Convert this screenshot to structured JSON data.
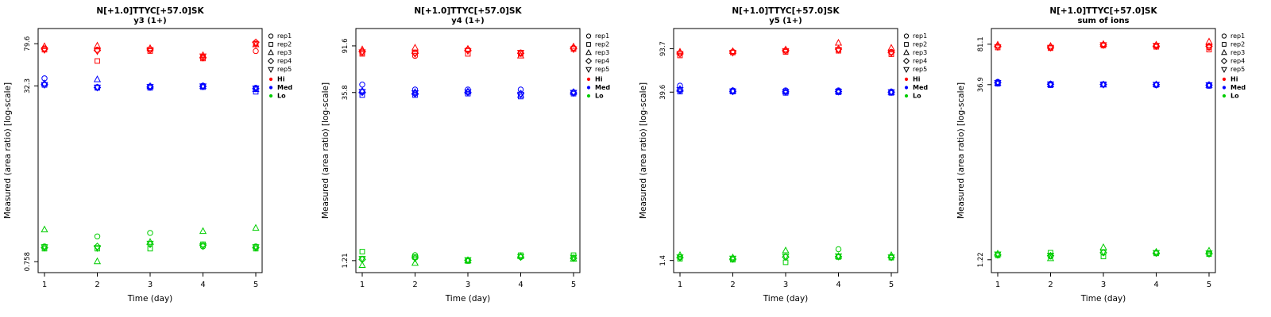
{
  "page": {
    "background": "#ffffff",
    "ylabel": "Measured (area ratio) [log-scale]",
    "xlabel": "Time (day)"
  },
  "legend": {
    "reps": [
      {
        "label": "rep1",
        "marker": "circle"
      },
      {
        "label": "rep2",
        "marker": "square"
      },
      {
        "label": "rep3",
        "marker": "triangle-up"
      },
      {
        "label": "rep4",
        "marker": "diamond"
      },
      {
        "label": "rep5",
        "marker": "triangle-down"
      }
    ],
    "levels": [
      {
        "label": "Hi",
        "color": "#FF0000"
      },
      {
        "label": "Med",
        "color": "#0000FF"
      },
      {
        "label": "Lo",
        "color": "#00CD00"
      }
    ]
  },
  "chart_data": [
    {
      "type": "scatter",
      "title": "N[+1.0]TTYC[+57.0]SK",
      "subtitle": "y3 (1+)",
      "xlabel": "Time (day)",
      "ylabel": "Measured (area ratio) [log-scale]",
      "x": [
        1,
        2,
        3,
        4,
        5
      ],
      "x_tick_labels": [
        "1",
        "2",
        "3",
        "4",
        "5"
      ],
      "ylog": true,
      "ylim": [
        0.6,
        110
      ],
      "yticks": [
        {
          "v": 79.6,
          "label": "79.6"
        },
        {
          "v": 32.3,
          "label": "32.3"
        },
        {
          "v": 0.758,
          "label": "0.758"
        }
      ],
      "series": [
        {
          "level": "Hi",
          "rep": "rep1",
          "values": [
            72,
            70,
            70,
            60,
            68
          ]
        },
        {
          "level": "Hi",
          "rep": "rep2",
          "values": [
            70,
            55,
            68,
            58,
            80
          ]
        },
        {
          "level": "Hi",
          "rep": "rep3",
          "values": [
            75,
            76,
            72,
            62,
            78
          ]
        },
        {
          "level": "Hi",
          "rep": "rep4",
          "values": [
            71,
            69,
            71,
            59,
            82
          ]
        },
        {
          "level": "Hi",
          "rep": "rep5",
          "values": [
            70,
            68,
            70,
            61,
            79
          ]
        },
        {
          "level": "Med",
          "rep": "rep1",
          "values": [
            38,
            31.5,
            32,
            32.5,
            31
          ]
        },
        {
          "level": "Med",
          "rep": "rep2",
          "values": [
            33,
            31,
            31,
            31.5,
            28.5
          ]
        },
        {
          "level": "Med",
          "rep": "rep3",
          "values": [
            34,
            37,
            32,
            32,
            30
          ]
        },
        {
          "level": "Med",
          "rep": "rep4",
          "values": [
            33.5,
            31.2,
            31.5,
            32,
            30.5
          ]
        },
        {
          "level": "Med",
          "rep": "rep5",
          "values": [
            33.2,
            31.4,
            31.8,
            32.2,
            30.8
          ]
        },
        {
          "level": "Lo",
          "rep": "rep1",
          "values": [
            1.05,
            1.3,
            1.4,
            1.05,
            1.05
          ]
        },
        {
          "level": "Lo",
          "rep": "rep2",
          "values": [
            1.0,
            1.0,
            1.0,
            1.1,
            1.0
          ]
        },
        {
          "level": "Lo",
          "rep": "rep3",
          "values": [
            1.5,
            0.76,
            1.15,
            1.45,
            1.55
          ]
        },
        {
          "level": "Lo",
          "rep": "rep4",
          "values": [
            1.02,
            1.05,
            1.1,
            1.08,
            1.02
          ]
        },
        {
          "level": "Lo",
          "rep": "rep5",
          "values": [
            1.04,
            1.02,
            1.12,
            1.06,
            1.04
          ]
        }
      ]
    },
    {
      "type": "scatter",
      "title": "N[+1.0]TTYC[+57.0]SK",
      "subtitle": "y4 (1+)",
      "xlabel": "Time (day)",
      "ylabel": "Measured (area ratio) [log-scale]",
      "x": [
        1,
        2,
        3,
        4,
        5
      ],
      "x_tick_labels": [
        "1",
        "2",
        "3",
        "4",
        "5"
      ],
      "ylog": true,
      "ylim": [
        0.95,
        130
      ],
      "yticks": [
        {
          "v": 91.6,
          "label": "91.6"
        },
        {
          "v": 35.8,
          "label": "35.8"
        },
        {
          "v": 1.21,
          "label": "1.21"
        }
      ],
      "series": [
        {
          "level": "Hi",
          "rep": "rep1",
          "values": [
            80,
            75,
            85,
            80,
            88
          ]
        },
        {
          "level": "Hi",
          "rep": "rep2",
          "values": [
            78,
            80,
            78,
            78,
            86
          ]
        },
        {
          "level": "Hi",
          "rep": "rep3",
          "values": [
            85,
            88,
            86,
            75,
            90
          ]
        },
        {
          "level": "Hi",
          "rep": "rep4",
          "values": [
            82,
            79,
            84,
            79,
            87
          ]
        },
        {
          "level": "Hi",
          "rep": "rep5",
          "values": [
            81,
            78,
            83,
            80,
            86
          ]
        },
        {
          "level": "Med",
          "rep": "rep1",
          "values": [
            42,
            38,
            38,
            38,
            36
          ]
        },
        {
          "level": "Med",
          "rep": "rep2",
          "values": [
            34,
            34,
            35,
            33,
            35
          ]
        },
        {
          "level": "Med",
          "rep": "rep3",
          "values": [
            37,
            36,
            36.5,
            34,
            36
          ]
        },
        {
          "level": "Med",
          "rep": "rep4",
          "values": [
            36,
            35,
            36,
            35,
            35.5
          ]
        },
        {
          "level": "Med",
          "rep": "rep5",
          "values": [
            36.5,
            35.5,
            36.2,
            34.5,
            35.8
          ]
        },
        {
          "level": "Lo",
          "rep": "rep1",
          "values": [
            1.25,
            1.35,
            1.22,
            1.3,
            1.28
          ]
        },
        {
          "level": "Lo",
          "rep": "rep2",
          "values": [
            1.45,
            1.3,
            1.2,
            1.35,
            1.35
          ]
        },
        {
          "level": "Lo",
          "rep": "rep3",
          "values": [
            1.1,
            1.15,
            1.21,
            1.32,
            1.25
          ]
        },
        {
          "level": "Lo",
          "rep": "rep4",
          "values": [
            1.24,
            1.28,
            1.22,
            1.3,
            1.27
          ]
        },
        {
          "level": "Lo",
          "rep": "rep5",
          "values": [
            1.26,
            1.27,
            1.23,
            1.31,
            1.29
          ]
        }
      ]
    },
    {
      "type": "scatter",
      "title": "N[+1.0]TTYC[+57.0]SK",
      "subtitle": "y5 (1+)",
      "xlabel": "Time (day)",
      "ylabel": "Measured (area ratio) [log-scale]",
      "x": [
        1,
        2,
        3,
        4,
        5
      ],
      "x_tick_labels": [
        "1",
        "2",
        "3",
        "4",
        "5"
      ],
      "ylog": true,
      "ylim": [
        1.1,
        140
      ],
      "yticks": [
        {
          "v": 93.7,
          "label": "93.7"
        },
        {
          "v": 39.6,
          "label": "39.6"
        },
        {
          "v": 1.4,
          "label": "1.4"
        }
      ],
      "series": [
        {
          "level": "Hi",
          "rep": "rep1",
          "values": [
            85,
            88,
            90,
            92,
            88
          ]
        },
        {
          "level": "Hi",
          "rep": "rep2",
          "values": [
            82,
            87,
            88,
            90,
            84
          ]
        },
        {
          "level": "Hi",
          "rep": "rep3",
          "values": [
            88,
            89,
            92,
            105,
            95
          ]
        },
        {
          "level": "Hi",
          "rep": "rep4",
          "values": [
            86,
            88,
            91,
            93,
            87
          ]
        },
        {
          "level": "Hi",
          "rep": "rep5",
          "values": [
            85,
            87,
            90,
            92,
            86
          ]
        },
        {
          "level": "Med",
          "rep": "rep1",
          "values": [
            45,
            41,
            41,
            41,
            40
          ]
        },
        {
          "level": "Med",
          "rep": "rep2",
          "values": [
            40,
            40,
            39,
            39.5,
            39
          ]
        },
        {
          "level": "Med",
          "rep": "rep3",
          "values": [
            42,
            40.5,
            40,
            40,
            39.5
          ]
        },
        {
          "level": "Med",
          "rep": "rep4",
          "values": [
            41,
            40.2,
            39.8,
            40,
            39.6
          ]
        },
        {
          "level": "Med",
          "rep": "rep5",
          "values": [
            41.5,
            40.4,
            39.9,
            40.2,
            39.8
          ]
        },
        {
          "level": "Lo",
          "rep": "rep1",
          "values": [
            1.5,
            1.45,
            1.5,
            1.75,
            1.5
          ]
        },
        {
          "level": "Lo",
          "rep": "rep2",
          "values": [
            1.45,
            1.42,
            1.35,
            1.5,
            1.48
          ]
        },
        {
          "level": "Lo",
          "rep": "rep3",
          "values": [
            1.55,
            1.48,
            1.7,
            1.52,
            1.55
          ]
        },
        {
          "level": "Lo",
          "rep": "rep4",
          "values": [
            1.48,
            1.44,
            1.5,
            1.51,
            1.49
          ]
        },
        {
          "level": "Lo",
          "rep": "rep5",
          "values": [
            1.5,
            1.46,
            1.52,
            1.53,
            1.5
          ]
        }
      ]
    },
    {
      "type": "scatter",
      "title": "N[+1.0]TTYC[+57.0]SK",
      "subtitle": "sum of ions",
      "xlabel": "Time (day)",
      "ylabel": "Measured (area ratio) [log-scale]",
      "x": [
        1,
        2,
        3,
        4,
        5
      ],
      "x_tick_labels": [
        "1",
        "2",
        "3",
        "4",
        "5"
      ],
      "ylog": true,
      "ylim": [
        0.95,
        110
      ],
      "yticks": [
        {
          "v": 81.1,
          "label": "81.1"
        },
        {
          "v": 36.9,
          "label": "36.9"
        },
        {
          "v": 1.22,
          "label": "1.22"
        }
      ],
      "series": [
        {
          "level": "Hi",
          "rep": "rep1",
          "values": [
            78,
            76,
            80,
            79,
            76
          ]
        },
        {
          "level": "Hi",
          "rep": "rep2",
          "values": [
            76,
            75,
            79,
            77,
            73
          ]
        },
        {
          "level": "Hi",
          "rep": "rep3",
          "values": [
            80,
            78,
            81,
            80,
            85
          ]
        },
        {
          "level": "Hi",
          "rep": "rep4",
          "values": [
            78,
            77,
            80,
            78,
            78
          ]
        },
        {
          "level": "Hi",
          "rep": "rep5",
          "values": [
            77,
            76,
            80,
            79,
            77
          ]
        },
        {
          "level": "Med",
          "rep": "rep1",
          "values": [
            39,
            37.5,
            37,
            36.5,
            36.8
          ]
        },
        {
          "level": "Med",
          "rep": "rep2",
          "values": [
            37.5,
            36.5,
            37.2,
            36.8,
            36
          ]
        },
        {
          "level": "Med",
          "rep": "rep3",
          "values": [
            38,
            37,
            36.8,
            36.9,
            36.5
          ]
        },
        {
          "level": "Med",
          "rep": "rep4",
          "values": [
            38.2,
            37.2,
            37,
            36.9,
            36.6
          ]
        },
        {
          "level": "Med",
          "rep": "rep5",
          "values": [
            38.4,
            37.3,
            37.1,
            37,
            36.7
          ]
        },
        {
          "level": "Lo",
          "rep": "rep1",
          "values": [
            1.35,
            1.3,
            1.4,
            1.4,
            1.38
          ]
        },
        {
          "level": "Lo",
          "rep": "rep2",
          "values": [
            1.33,
            1.4,
            1.3,
            1.38,
            1.36
          ]
        },
        {
          "level": "Lo",
          "rep": "rep3",
          "values": [
            1.37,
            1.25,
            1.55,
            1.42,
            1.45
          ]
        },
        {
          "level": "Lo",
          "rep": "rep4",
          "values": [
            1.34,
            1.32,
            1.4,
            1.39,
            1.37
          ]
        },
        {
          "level": "Lo",
          "rep": "rep5",
          "values": [
            1.36,
            1.33,
            1.42,
            1.4,
            1.39
          ]
        }
      ]
    }
  ]
}
